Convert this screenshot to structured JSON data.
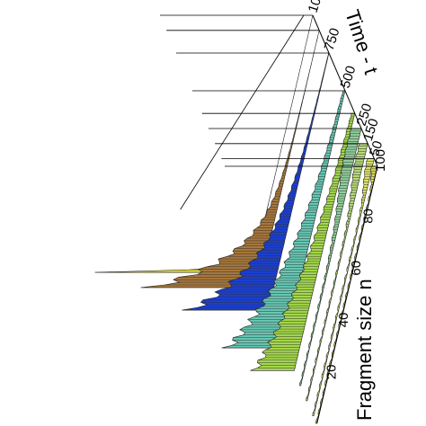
{
  "chart_data": {
    "type": "area",
    "title": "",
    "xlabel": "Fragment size n",
    "zlabel": "Time - t",
    "x_ticks": [
      20,
      40,
      60,
      80,
      100
    ],
    "t_ticks": [
      50,
      150,
      250,
      500,
      750,
      1000
    ],
    "xlim": [
      1,
      100
    ],
    "grid": false,
    "legend": "none",
    "series": [
      {
        "t": 0,
        "color": "#d9d65a",
        "peak_n": 100,
        "peak": 0.05,
        "shape": "front",
        "width": 6
      },
      {
        "t": 50,
        "color": "#dce36a",
        "peak_n": 98,
        "peak": 0.06,
        "shape": "front",
        "width": 12
      },
      {
        "t": 150,
        "color": "#b7d97a",
        "peak_n": 96,
        "peak": 0.08,
        "shape": "front",
        "width": 20
      },
      {
        "t": 250,
        "color": "#8fcf9a",
        "peak_n": 92,
        "peak": 0.1,
        "shape": "front",
        "width": 28
      },
      {
        "t": 350,
        "color": "#a4d84a",
        "peak_n": 28,
        "peak": 0.28,
        "shape": "decay",
        "width": 40
      },
      {
        "t": 500,
        "color": "#66c8b4",
        "peak_n": 20,
        "peak": 0.4,
        "shape": "decay",
        "width": 30
      },
      {
        "t": 750,
        "color": "#1a3fd1",
        "peak_n": 12,
        "peak": 0.55,
        "shape": "decay",
        "width": 18
      },
      {
        "t": 900,
        "color": "#a8773a",
        "peak_n": 8,
        "peak": 0.75,
        "shape": "decay",
        "width": 12
      },
      {
        "t": 1000,
        "color": "#f0e62a",
        "peak_n": 2,
        "peak": 1.0,
        "shape": "spike",
        "width": 3
      }
    ],
    "colors": {
      "axis": "#000000",
      "hatch": "#333333"
    }
  }
}
